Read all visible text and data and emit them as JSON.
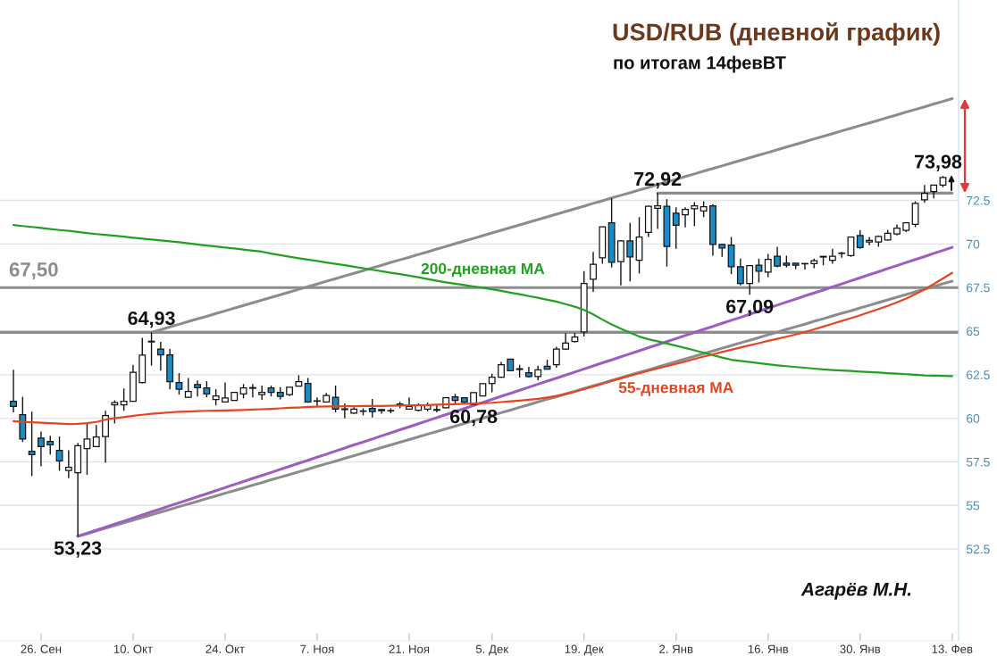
{
  "chart_data": {
    "type": "candlestick",
    "title": "USD/RUB (дневной график)",
    "subtitle": "по итогам 14февВТ",
    "categories": [
      null,
      null,
      null,
      "26. Сен",
      null,
      null,
      null,
      null,
      null,
      null,
      null,
      null,
      null,
      "10. Окт",
      null,
      null,
      null,
      null,
      null,
      null,
      null,
      null,
      null,
      "24. Окт",
      null,
      null,
      null,
      null,
      null,
      null,
      null,
      null,
      null,
      "7. Ноя",
      null,
      null,
      null,
      null,
      null,
      null,
      null,
      null,
      null,
      "21. Ноя",
      null,
      null,
      null,
      null,
      null,
      null,
      null,
      null,
      "5. Дек",
      null,
      null,
      null,
      null,
      null,
      null,
      null,
      null,
      null,
      "19. Дек",
      null,
      null,
      null,
      null,
      null,
      null,
      null,
      null,
      null,
      "2. Янв",
      null,
      null,
      null,
      null,
      null,
      null,
      null,
      null,
      null,
      "16. Янв",
      null,
      null,
      null,
      null,
      null,
      null,
      null,
      null,
      null,
      "30. Янв",
      null,
      null,
      null,
      null,
      null,
      null,
      null,
      null,
      null,
      "13. Фев"
    ],
    "ohlc": [
      [
        60.98,
        62.78,
        60.34,
        60.68
      ],
      [
        60.21,
        61.23,
        58.64,
        58.81
      ],
      [
        58.11,
        60.38,
        56.68,
        57.92
      ],
      [
        58.86,
        59.24,
        57.24,
        58.38
      ],
      [
        58.67,
        59.0,
        57.92,
        58.48
      ],
      [
        58.16,
        58.95,
        56.99,
        57.56
      ],
      [
        57.0,
        58.16,
        56.56,
        57.19
      ],
      [
        56.88,
        58.59,
        53.23,
        58.42
      ],
      [
        58.26,
        59.7,
        56.76,
        58.81
      ],
      [
        58.38,
        59.61,
        58.35,
        58.93
      ],
      [
        58.95,
        60.43,
        57.45,
        60.16
      ],
      [
        60.77,
        61.03,
        59.7,
        60.9
      ],
      [
        60.77,
        61.71,
        60.43,
        60.98
      ],
      [
        60.98,
        63.07,
        60.95,
        62.64
      ],
      [
        62.05,
        64.61,
        62.0,
        63.62
      ],
      [
        64.38,
        64.93,
        63.02,
        64.42
      ],
      [
        63.97,
        64.38,
        62.73,
        63.64
      ],
      [
        63.64,
        63.97,
        61.66,
        62.1
      ],
      [
        62.05,
        62.59,
        61.36,
        61.67
      ],
      [
        61.2,
        62.31,
        61.18,
        61.54
      ],
      [
        61.93,
        62.17,
        61.25,
        61.76
      ],
      [
        61.74,
        62.13,
        61.2,
        61.4
      ],
      [
        61.08,
        61.67,
        60.74,
        61.28
      ],
      [
        60.94,
        62.05,
        60.9,
        61.16
      ],
      [
        61.03,
        61.5,
        61.0,
        61.48
      ],
      [
        61.4,
        61.96,
        61.14,
        61.74
      ],
      [
        61.72,
        61.96,
        61.2,
        61.76
      ],
      [
        61.36,
        61.88,
        61.06,
        61.49
      ],
      [
        61.74,
        61.88,
        61.25,
        61.49
      ],
      [
        61.49,
        61.79,
        61.08,
        61.25
      ],
      [
        61.36,
        61.79,
        61.28,
        61.78
      ],
      [
        61.84,
        62.47,
        61.82,
        62.1
      ],
      [
        62.0,
        62.31,
        60.89,
        60.94
      ],
      [
        61.0,
        61.2,
        60.68,
        60.98
      ],
      [
        60.94,
        61.45,
        60.9,
        61.31
      ],
      [
        61.2,
        61.88,
        60.34,
        60.52
      ],
      [
        60.54,
        60.85,
        60.0,
        60.5
      ],
      [
        60.29,
        60.63,
        60.25,
        60.52
      ],
      [
        60.42,
        60.57,
        60.17,
        60.4
      ],
      [
        60.57,
        61.11,
        60.05,
        60.38
      ],
      [
        60.43,
        60.52,
        60.26,
        60.5
      ],
      [
        60.42,
        60.57,
        60.29,
        60.44
      ],
      [
        60.78,
        60.94,
        60.57,
        60.82
      ],
      [
        60.52,
        61.2,
        60.5,
        60.68
      ],
      [
        60.46,
        60.85,
        60.4,
        60.77
      ],
      [
        60.52,
        60.9,
        60.4,
        60.77
      ],
      [
        60.5,
        60.77,
        60.34,
        60.46
      ],
      [
        60.6,
        61.2,
        60.57,
        61.18
      ],
      [
        61.23,
        61.4,
        60.8,
        61.03
      ],
      [
        61.18,
        61.2,
        60.85,
        60.94
      ],
      [
        60.8,
        61.49,
        60.78,
        61.47
      ],
      [
        61.28,
        62.0,
        61.25,
        61.98
      ],
      [
        62.0,
        62.56,
        61.49,
        62.36
      ],
      [
        62.36,
        63.24,
        62.33,
        63.07
      ],
      [
        63.39,
        63.41,
        62.7,
        62.73
      ],
      [
        62.84,
        63.07,
        62.34,
        62.8
      ],
      [
        62.61,
        62.95,
        62.34,
        62.39
      ],
      [
        62.39,
        63.02,
        62.17,
        62.78
      ],
      [
        62.99,
        63.36,
        62.8,
        62.82
      ],
      [
        63.07,
        64.1,
        62.9,
        63.97
      ],
      [
        63.97,
        64.89,
        63.92,
        64.32
      ],
      [
        64.4,
        64.89,
        64.35,
        64.66
      ],
      [
        64.95,
        68.44,
        64.69,
        67.73
      ],
      [
        67.98,
        69.55,
        67.25,
        68.83
      ],
      [
        69.21,
        71.0,
        68.87,
        70.98
      ],
      [
        71.21,
        72.62,
        68.65,
        68.95
      ],
      [
        68.99,
        70.23,
        67.63,
        70.18
      ],
      [
        70.18,
        71.21,
        67.85,
        69.26
      ],
      [
        69.07,
        71.54,
        68.31,
        70.4
      ],
      [
        70.66,
        72.19,
        70.4,
        72.17
      ],
      [
        72.05,
        72.92,
        70.86,
        72.19
      ],
      [
        72.16,
        72.57,
        68.7,
        69.86
      ],
      [
        71.77,
        72.11,
        69.72,
        71.08
      ],
      [
        71.68,
        72.11,
        70.95,
        71.99
      ],
      [
        72.02,
        72.4,
        71.03,
        72.19
      ],
      [
        71.89,
        72.45,
        71.54,
        72.14
      ],
      [
        72.19,
        72.28,
        69.33,
        69.98
      ],
      [
        69.98,
        70.01,
        69.26,
        69.77
      ],
      [
        69.93,
        70.4,
        68.27,
        68.7
      ],
      [
        68.7,
        69.16,
        67.63,
        67.73
      ],
      [
        67.73,
        68.78,
        67.09,
        68.76
      ],
      [
        68.78,
        69.16,
        67.79,
        68.44
      ],
      [
        68.39,
        69.43,
        68.1,
        69.12
      ],
      [
        69.29,
        69.84,
        68.66,
        68.73
      ],
      [
        68.9,
        69.33,
        68.65,
        68.78
      ],
      [
        68.9,
        68.92,
        68.56,
        68.78
      ],
      [
        68.88,
        68.9,
        68.53,
        68.86
      ],
      [
        68.87,
        69.16,
        68.61,
        69.04
      ],
      [
        69.25,
        69.31,
        68.78,
        69.29
      ],
      [
        69.07,
        69.72,
        68.87,
        69.29
      ],
      [
        69.46,
        69.55,
        69.21,
        69.48
      ],
      [
        69.33,
        70.42,
        69.26,
        70.4
      ],
      [
        70.49,
        70.8,
        69.72,
        69.8
      ],
      [
        70.11,
        70.4,
        69.93,
        70.21
      ],
      [
        70.11,
        70.49,
        69.84,
        70.44
      ],
      [
        70.23,
        70.8,
        70.2,
        70.61
      ],
      [
        70.57,
        71.12,
        70.49,
        70.91
      ],
      [
        70.78,
        71.22,
        70.69,
        71.21
      ],
      [
        71.13,
        72.45,
        70.97,
        72.33
      ],
      [
        72.54,
        73.38,
        72.36,
        72.91
      ],
      [
        73.01,
        73.4,
        72.62,
        73.38
      ],
      [
        73.38,
        73.9,
        73.25,
        73.81
      ],
      null
    ],
    "colors": [
      "#1b8bc4",
      "#1b8bc4",
      "#1b8bc4",
      "#1b8bc4",
      "#1b8bc4",
      "#1b8bc4",
      "#ffffff",
      "#ffffff",
      "#ffffff",
      "#ffffff",
      "#ffffff",
      "#ffffff",
      "#ffffff",
      "#ffffff",
      "#ffffff",
      "#ffffff",
      "#1b8bc4",
      "#1b8bc4",
      "#1b8bc4",
      "#ffffff",
      "#1b8bc4",
      "#1b8bc4",
      "#ffffff",
      "#ffffff",
      "#ffffff",
      "#ffffff",
      "#ffffff",
      "#ffffff",
      "#1b8bc4",
      "#1b8bc4",
      "#ffffff",
      "#ffffff",
      "#1b8bc4",
      "#1b8bc4",
      "#ffffff",
      "#1b8bc4",
      "#1b8bc4",
      "#ffffff",
      "#1b8bc4",
      "#1b8bc4",
      "#ffffff",
      "#ffffff",
      "#ffffff",
      "#ffffff",
      "#ffffff",
      "#ffffff",
      "#1b8bc4",
      "#ffffff",
      "#1b8bc4",
      "#1b8bc4",
      "#ffffff",
      "#ffffff",
      "#ffffff",
      "#ffffff",
      "#1b8bc4",
      "#1b8bc4",
      "#1b8bc4",
      "#ffffff",
      "#1b8bc4",
      "#ffffff",
      "#ffffff",
      "#ffffff",
      "#ffffff",
      "#ffffff",
      "#ffffff",
      "#1b8bc4",
      "#ffffff",
      "#1b8bc4",
      "#ffffff",
      "#ffffff",
      "#ffffff",
      "#1b8bc4",
      "#1b8bc4",
      "#ffffff",
      "#ffffff",
      "#ffffff",
      "#1b8bc4",
      "#1b8bc4",
      "#1b8bc4",
      "#1b8bc4",
      "#ffffff",
      "#1b8bc4",
      "#ffffff",
      "#1b8bc4",
      "#1b8bc4",
      "#1b8bc4",
      "#1b8bc4",
      "#ffffff",
      "#ffffff",
      "#ffffff",
      "#ffffff",
      "#ffffff",
      "#1b8bc4",
      "#ffffff",
      "#ffffff",
      "#ffffff",
      "#ffffff",
      "#ffffff",
      "#ffffff",
      "#ffffff",
      "#ffffff",
      "#ffffff",
      null
    ],
    "series": [
      {
        "type": "line",
        "name": "200-дневная MA",
        "color": "#22a022",
        "values": [
          71.09,
          71.03,
          70.98,
          70.92,
          70.86,
          70.8,
          70.75,
          70.69,
          70.63,
          70.57,
          70.52,
          70.47,
          70.42,
          70.36,
          70.31,
          70.26,
          70.21,
          70.15,
          70.1,
          70.04,
          69.97,
          69.91,
          69.86,
          69.8,
          69.74,
          69.68,
          69.62,
          69.56,
          69.45,
          69.36,
          69.27,
          69.18,
          69.1,
          69.03,
          68.94,
          68.86,
          68.78,
          68.69,
          68.61,
          68.52,
          68.44,
          68.35,
          68.27,
          68.18,
          68.09,
          67.99,
          67.89,
          67.8,
          67.72,
          67.64,
          67.56,
          67.49,
          67.4,
          67.31,
          67.21,
          67.12,
          67.01,
          66.91,
          66.8,
          66.7,
          66.55,
          66.4,
          66.22,
          65.96,
          65.66,
          65.39,
          65.14,
          64.91,
          64.69,
          64.53,
          64.42,
          64.29,
          64.16,
          64.03,
          63.9,
          63.76,
          63.62,
          63.48,
          63.36,
          63.29,
          63.23,
          63.16,
          63.1,
          63.04,
          62.99,
          62.94,
          62.9,
          62.85,
          62.8,
          62.77,
          62.74,
          62.71,
          62.68,
          62.65,
          62.62,
          62.59,
          62.56,
          62.53,
          62.5,
          62.46,
          62.45,
          62.43,
          62.42
        ]
      },
      {
        "type": "line",
        "name": "55-дневная MA",
        "color": "#e5461f",
        "values": [
          59.83,
          59.8,
          59.77,
          59.75,
          59.72,
          59.69,
          59.67,
          59.68,
          59.72,
          59.79,
          59.92,
          60.0,
          60.07,
          60.14,
          60.2,
          60.26,
          60.3,
          60.34,
          60.37,
          60.39,
          60.41,
          60.43,
          60.44,
          60.45,
          60.46,
          60.48,
          60.5,
          60.52,
          60.54,
          60.57,
          60.6,
          60.62,
          60.65,
          60.67,
          60.68,
          60.68,
          60.69,
          60.69,
          60.7,
          60.7,
          60.71,
          60.72,
          60.73,
          60.74,
          60.75,
          60.76,
          60.78,
          60.79,
          60.81,
          60.83,
          60.85,
          60.87,
          60.89,
          60.93,
          60.97,
          61.01,
          61.06,
          61.11,
          61.19,
          61.28,
          61.38,
          61.52,
          61.67,
          61.82,
          61.98,
          62.14,
          62.29,
          62.44,
          62.58,
          62.72,
          62.86,
          62.99,
          63.12,
          63.26,
          63.4,
          63.54,
          63.67,
          63.8,
          63.93,
          64.06,
          64.19,
          64.31,
          64.44,
          64.56,
          64.68,
          64.81,
          64.94,
          65.1,
          65.26,
          65.42,
          65.58,
          65.74,
          65.91,
          66.09,
          66.27,
          66.45,
          66.65,
          66.87,
          67.12,
          67.4,
          67.7,
          68.02,
          68.34
        ]
      },
      {
        "type": "line",
        "color": "#8c8c8c",
        "values": [
          null,
          null,
          null,
          null,
          null,
          null,
          null,
          null,
          null,
          null,
          null,
          null,
          null,
          null,
          null,
          64.93,
          65.08,
          65.24,
          65.39,
          65.55,
          65.7,
          65.85,
          66.01,
          66.16,
          66.32,
          66.47,
          66.63,
          66.78,
          66.93,
          67.09,
          67.24,
          67.4,
          67.55,
          67.7,
          67.86,
          68.01,
          68.17,
          68.32,
          68.47,
          68.63,
          68.78,
          68.94,
          69.09,
          69.24,
          69.4,
          69.55,
          69.71,
          69.86,
          70.02,
          70.17,
          70.32,
          70.48,
          70.63,
          70.79,
          70.94,
          71.09,
          71.25,
          71.4,
          71.56,
          71.71,
          71.86,
          72.02,
          72.17,
          72.33,
          72.48,
          72.64,
          72.79,
          72.94,
          73.1,
          73.25,
          73.41,
          73.56,
          73.71,
          73.87,
          74.02,
          74.18,
          74.33,
          74.48,
          74.64,
          74.79,
          74.95,
          75.1,
          75.25,
          75.41,
          75.56,
          75.72,
          75.87,
          76.03,
          76.18,
          76.33,
          76.49,
          76.64,
          76.8,
          76.95,
          77.1,
          77.26,
          77.41,
          77.57,
          77.72,
          77.87,
          78.03,
          78.18,
          78.34
        ]
      },
      {
        "type": "line",
        "color": "#8c8c8c",
        "values": [
          null,
          null,
          null,
          null,
          null,
          null,
          null,
          53.23,
          53.38,
          53.54,
          53.69,
          53.85,
          54.0,
          54.15,
          54.31,
          54.46,
          54.62,
          54.77,
          54.93,
          55.08,
          55.23,
          55.39,
          55.54,
          55.7,
          55.85,
          56.0,
          56.16,
          56.31,
          56.47,
          56.62,
          56.77,
          56.93,
          57.08,
          57.24,
          57.39,
          57.54,
          57.7,
          57.85,
          58.01,
          58.16,
          58.32,
          58.47,
          58.62,
          58.78,
          58.93,
          59.09,
          59.24,
          59.39,
          59.55,
          59.7,
          59.86,
          60.01,
          60.16,
          60.32,
          60.47,
          60.63,
          60.78,
          60.94,
          61.09,
          61.24,
          61.4,
          61.55,
          61.71,
          61.86,
          62.01,
          62.17,
          62.32,
          62.48,
          62.63,
          62.78,
          62.94,
          63.09,
          63.25,
          63.4,
          63.55,
          63.71,
          63.86,
          64.02,
          64.17,
          64.33,
          64.48,
          64.63,
          64.79,
          64.94,
          65.1,
          65.25,
          65.4,
          65.56,
          65.71,
          65.87,
          66.02,
          66.17,
          66.33,
          66.48,
          66.64,
          66.79,
          66.95,
          67.1,
          67.25,
          67.41,
          67.56,
          67.72,
          67.87
        ]
      },
      {
        "type": "line",
        "color": "#9b5fc0",
        "values": [
          null,
          null,
          null,
          null,
          null,
          null,
          null,
          53.23,
          53.4,
          53.58,
          53.75,
          53.93,
          54.1,
          54.28,
          54.45,
          54.63,
          54.8,
          54.98,
          55.15,
          55.32,
          55.5,
          55.67,
          55.85,
          56.02,
          56.2,
          56.37,
          56.55,
          56.72,
          56.89,
          57.07,
          57.24,
          57.42,
          57.59,
          57.77,
          57.94,
          58.12,
          58.29,
          58.47,
          58.64,
          58.81,
          58.99,
          59.16,
          59.34,
          59.51,
          59.69,
          59.86,
          60.04,
          60.21,
          60.38,
          60.56,
          60.73,
          60.91,
          61.08,
          61.26,
          61.43,
          61.61,
          61.78,
          61.96,
          62.13,
          62.3,
          62.48,
          62.65,
          62.83,
          63.0,
          63.18,
          63.35,
          63.53,
          63.7,
          63.87,
          64.05,
          64.22,
          64.4,
          64.57,
          64.75,
          64.92,
          65.1,
          65.27,
          65.45,
          65.62,
          65.79,
          65.97,
          66.14,
          66.32,
          66.49,
          66.67,
          66.84,
          67.02,
          67.19,
          67.36,
          67.54,
          67.71,
          67.89,
          68.06,
          68.24,
          68.41,
          68.59,
          68.76,
          68.94,
          69.11,
          69.28,
          69.46,
          69.63,
          69.81
        ]
      },
      {
        "type": "line",
        "color": "#8c8c8c",
        "values": [
          null,
          null,
          null,
          null,
          null,
          null,
          null,
          null,
          null,
          null,
          null,
          null,
          null,
          null,
          null,
          null,
          null,
          null,
          null,
          null,
          null,
          null,
          null,
          null,
          null,
          null,
          null,
          null,
          null,
          null,
          null,
          null,
          null,
          null,
          null,
          null,
          null,
          null,
          null,
          null,
          null,
          null,
          null,
          null,
          null,
          null,
          null,
          null,
          null,
          null,
          null,
          null,
          null,
          null,
          null,
          null,
          null,
          null,
          null,
          null,
          null,
          null,
          null,
          null,
          null,
          null,
          null,
          null,
          null,
          null,
          72.92,
          72.92,
          72.92,
          72.92,
          72.92,
          72.92,
          72.92,
          72.92,
          72.92,
          72.92,
          72.92,
          72.92,
          72.92,
          72.92,
          72.92,
          72.92,
          72.92,
          72.92,
          72.92,
          72.92,
          72.92,
          72.92,
          72.92,
          72.92,
          72.92,
          72.92,
          72.92,
          72.92,
          72.92,
          72.92,
          72.92,
          72.92,
          72.92
        ]
      }
    ],
    "ref_lines": [
      {
        "axis": "y",
        "value": 67.5,
        "label": "67,50",
        "color": "#8c8c8c"
      },
      {
        "axis": "y",
        "value": 64.93,
        "color": "#8c8c8c"
      }
    ],
    "annotations": [
      {
        "text": "64,93",
        "y": 64.93
      },
      {
        "text": "53,23",
        "y": 53.23
      },
      {
        "text": "60,78",
        "y": 60.78
      },
      {
        "text": "72,92",
        "y": 72.92
      },
      {
        "text": "67,09",
        "y": 67.09
      },
      "73,98",
      "Агарёв М.Н."
    ],
    "ylim": [
      47.23,
      84.0
    ],
    "yticks": [
      52.5,
      55,
      57.5,
      60,
      62.5,
      65,
      67.5,
      70,
      72.5
    ],
    "grid": "y"
  }
}
